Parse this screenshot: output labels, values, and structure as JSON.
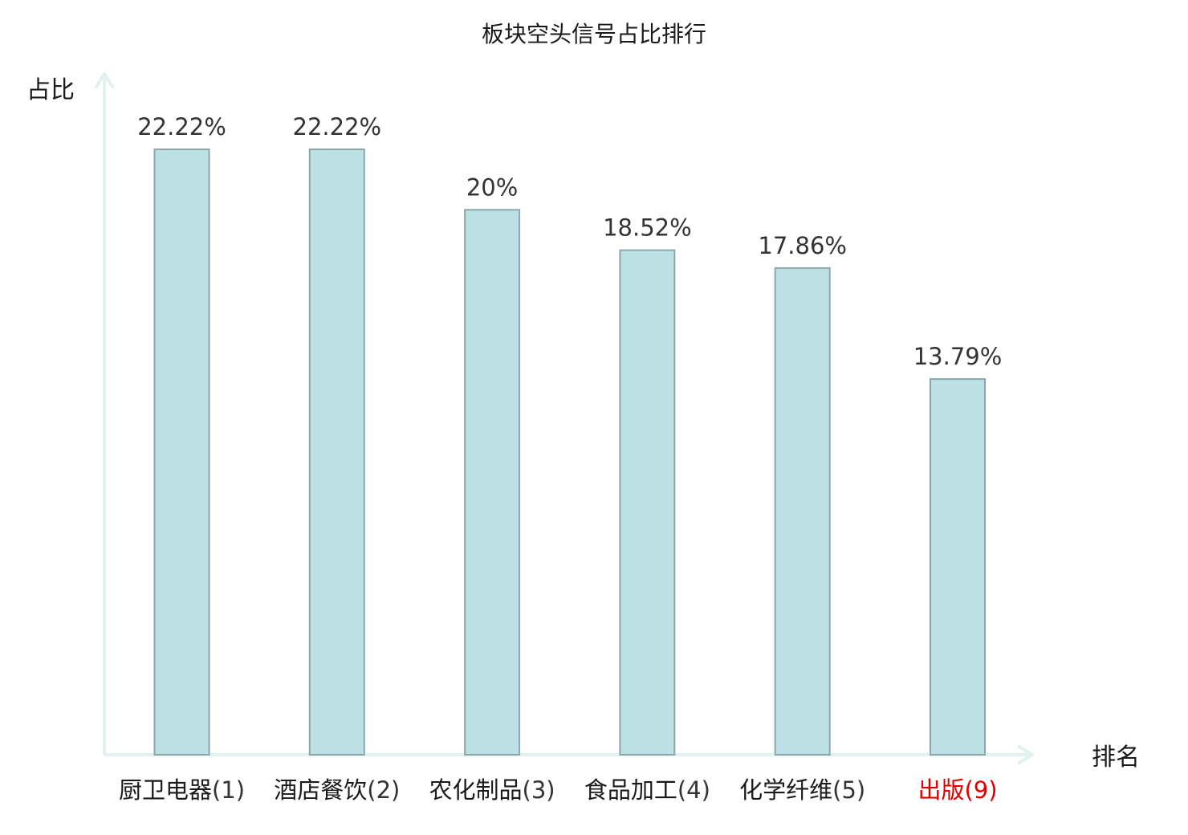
{
  "chart_data": {
    "type": "bar",
    "title": "板块空头信号占比排行",
    "ylabel": "占比",
    "xlabel": "排名",
    "ylim": [
      0,
      25
    ],
    "grid": false,
    "categories": [
      {
        "name": "厨卫电器",
        "rank": "(1)",
        "highlight": false
      },
      {
        "name": "酒店餐饮",
        "rank": "(2)",
        "highlight": false
      },
      {
        "name": "农化制品",
        "rank": "(3)",
        "highlight": false
      },
      {
        "name": "食品加工",
        "rank": "(4)",
        "highlight": false
      },
      {
        "name": "化学纤维",
        "rank": "(5)",
        "highlight": false
      },
      {
        "name": "出版",
        "rank": "(9)",
        "highlight": true
      }
    ],
    "values": [
      22.22,
      22.22,
      20,
      18.52,
      17.86,
      13.79
    ],
    "value_labels": [
      "22.22%",
      "22.22%",
      "20%",
      "18.52%",
      "17.86%",
      "13.79%"
    ],
    "colors": {
      "bar_fill": "#bce0e3",
      "bar_stroke": "#8aa8ab",
      "axis": "#dff2ef",
      "highlight": "#e00000"
    }
  }
}
